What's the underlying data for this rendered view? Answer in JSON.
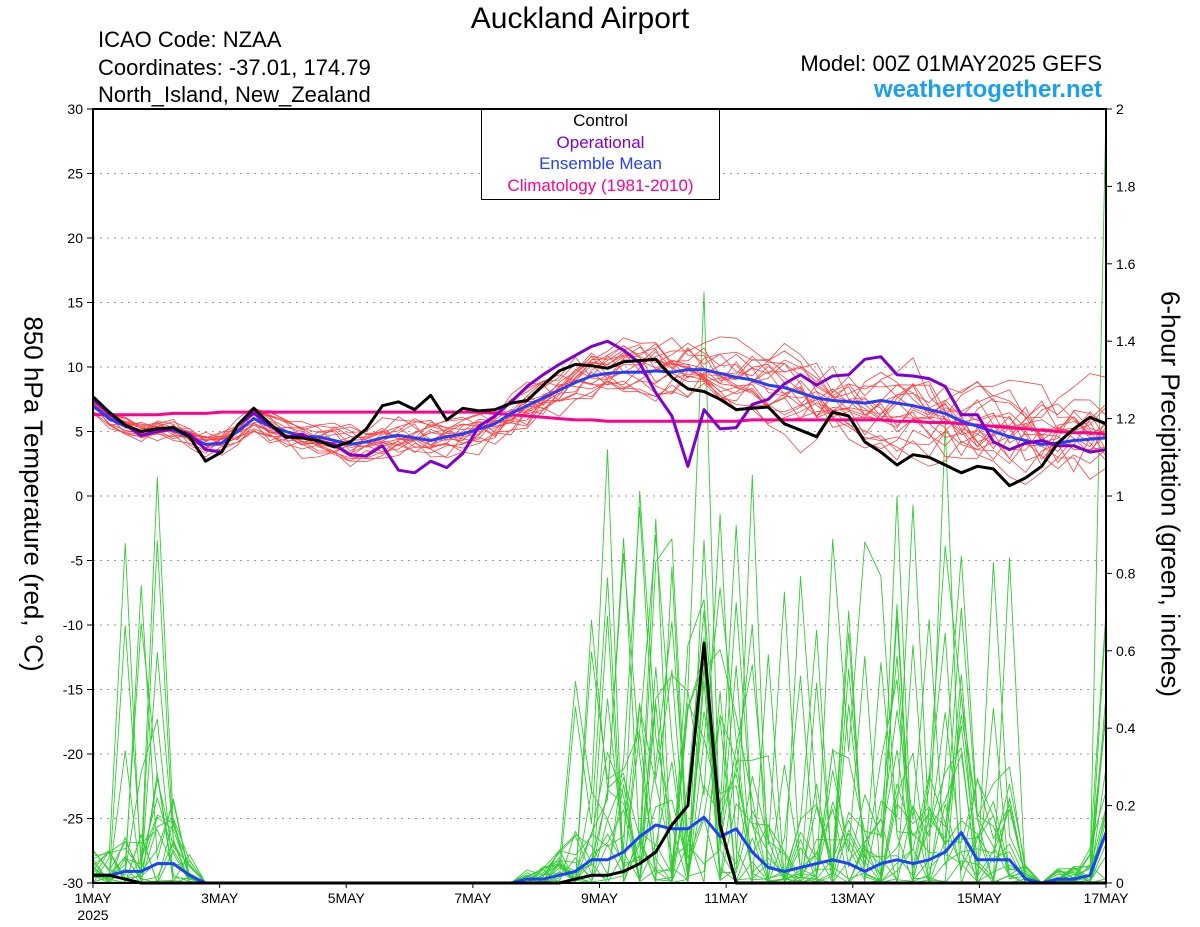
{
  "header": {
    "title": "Auckland Airport",
    "icao": "ICAO Code: NZAA",
    "coordinates": "Coordinates: -37.01, 174.79",
    "region": "North_Island, New_Zealand",
    "model": "Model: 00Z 01MAY2025 GEFS",
    "site": "weathertogether.net"
  },
  "colors": {
    "control": "#000000",
    "operational": "#8000d0",
    "ensemble_mean": "#2040ff",
    "climatology": "#ff0090",
    "members_temp": "#ff4040",
    "members_precip": "#33cc33",
    "site": "#1aa0f0"
  },
  "chart_data": {
    "type": "line",
    "ylabel_left": "850 hPa Temperature (red, °C)",
    "ylabel_right": "6-hour Precipitation (green, inches)",
    "ylim_left": [
      -30,
      30
    ],
    "ylim_right": [
      0,
      2
    ],
    "yticks_left": [
      "30",
      "25",
      "20",
      "15",
      "10",
      "5",
      "0",
      "-5",
      "-10",
      "-15",
      "-20",
      "-25",
      "-30"
    ],
    "yticks_right": [
      "2",
      "1.8",
      "1.6",
      "1.4",
      "1.2",
      "1",
      "0.8",
      "0.6",
      "0.4",
      "0.2",
      "0"
    ],
    "x_tick_labels": [
      "1MAY",
      "3MAY",
      "5MAY",
      "7MAY",
      "9MAY",
      "11MAY",
      "13MAY",
      "15MAY",
      "17MAY"
    ],
    "x_year_label": "2025",
    "grid": "dotted horizontal",
    "legend": {
      "position": "top-center",
      "entries": [
        "Control",
        "Operational",
        "Ensemble Mean",
        "Climatology (1981-2010)"
      ]
    },
    "time_step_hours": 6,
    "temperature": {
      "control": [
        7.7,
        6.5,
        5.5,
        5,
        5.2,
        5.3,
        4.6,
        2.7,
        3.4,
        5.5,
        6.8,
        5.6,
        4.6,
        4.5,
        4.3,
        3.8,
        4.2,
        5.2,
        7,
        7.3,
        6.7,
        7.8,
        5.9,
        6.8,
        6.6,
        6.7,
        7.2,
        7.4,
        8.6,
        9.7,
        10.2,
        10.1,
        9.9,
        10.4,
        10.5,
        10.6,
        9.2,
        8.3,
        8.1,
        7.5,
        6.7,
        6.8,
        6.9,
        5.6,
        5.1,
        4.6,
        6.5,
        6.2,
        4.2,
        3.4,
        2.4,
        3.2,
        3,
        2.4,
        1.8,
        2.3,
        2.1,
        0.8,
        1.4,
        2.3,
        4.1,
        5.2,
        6.1,
        5.6
      ],
      "operational": [
        7.5,
        6.4,
        5.5,
        4.7,
        5,
        5.2,
        4.8,
        3.6,
        3.4,
        5.5,
        6.4,
        5.5,
        4.5,
        4.8,
        4.2,
        4,
        3.2,
        3.1,
        3.9,
        2,
        1.8,
        2.7,
        2.2,
        3.3,
        5.4,
        6.2,
        7.3,
        8.5,
        9.4,
        10.2,
        10.9,
        11.6,
        12,
        11.3,
        10.3,
        8,
        6.2,
        2.3,
        6.7,
        5.2,
        5.3,
        7.1,
        7.5,
        8.7,
        9.4,
        8.6,
        9.3,
        9.4,
        10.6,
        10.8,
        9.4,
        9.3,
        9.1,
        8.5,
        6.3,
        6.3,
        4.2,
        3.6,
        4.1,
        4.3,
        3.9,
        3.9,
        3.4,
        3.6
      ],
      "ensemble_mean": [
        7,
        6,
        5.4,
        5,
        5.2,
        5.1,
        4.6,
        4,
        4.1,
        5,
        6,
        5.4,
        5,
        4.6,
        4.6,
        4.3,
        4,
        4.2,
        4.5,
        4.7,
        4.5,
        4.3,
        4.6,
        4.8,
        5.2,
        5.6,
        6.4,
        7,
        7.6,
        8.2,
        8.8,
        9.3,
        9.5,
        9.6,
        9.6,
        9.7,
        9.6,
        9.8,
        9.8,
        9.5,
        9.2,
        9,
        8.6,
        8.4,
        8,
        7.6,
        7.4,
        7.3,
        7.2,
        7.4,
        7.2,
        7,
        6.7,
        6.4,
        5.8,
        5.4,
        5,
        4.6,
        4.3,
        4,
        4.1,
        4.3,
        4.4,
        4.5
      ],
      "climatology": [
        6.3,
        6.3,
        6.3,
        6.3,
        6.3,
        6.4,
        6.4,
        6.4,
        6.5,
        6.5,
        6.5,
        6.5,
        6.5,
        6.5,
        6.5,
        6.5,
        6.5,
        6.5,
        6.5,
        6.5,
        6.5,
        6.5,
        6.5,
        6.5,
        6.5,
        6.4,
        6.3,
        6.2,
        6.1,
        6.0,
        5.9,
        5.9,
        5.8,
        5.8,
        5.8,
        5.8,
        5.8,
        5.8,
        5.8,
        5.8,
        5.8,
        5.9,
        5.9,
        5.9,
        5.9,
        5.9,
        5.9,
        5.9,
        5.9,
        5.9,
        5.8,
        5.8,
        5.7,
        5.7,
        5.6,
        5.5,
        5.4,
        5.3,
        5.2,
        5.1,
        5,
        4.9,
        4.9,
        4.8
      ]
    },
    "precipitation": {
      "control": [
        0.02,
        0.02,
        0.01,
        0,
        0,
        0,
        0,
        0,
        0,
        0,
        0,
        0,
        0,
        0,
        0,
        0,
        0,
        0,
        0,
        0,
        0,
        0,
        0,
        0,
        0,
        0,
        0,
        0,
        0,
        0,
        0.01,
        0.02,
        0.02,
        0.03,
        0.05,
        0.08,
        0.15,
        0.2,
        0.62,
        0.15,
        0,
        0,
        0,
        0,
        0,
        0,
        0,
        0,
        0,
        0,
        0,
        0,
        0,
        0,
        0,
        0,
        0,
        0,
        0,
        0,
        0,
        0,
        0,
        0
      ],
      "ensemble_mean": [
        0.02,
        0.02,
        0.03,
        0.03,
        0.05,
        0.05,
        0.02,
        0,
        0,
        0,
        0,
        0,
        0,
        0,
        0,
        0,
        0,
        0,
        0,
        0,
        0,
        0,
        0,
        0,
        0,
        0,
        0,
        0.01,
        0.01,
        0.02,
        0.03,
        0.06,
        0.06,
        0.08,
        0.12,
        0.15,
        0.14,
        0.14,
        0.17,
        0.12,
        0.14,
        0.08,
        0.04,
        0.03,
        0.04,
        0.05,
        0.06,
        0.05,
        0.03,
        0.05,
        0.06,
        0.05,
        0.06,
        0.08,
        0.13,
        0.06,
        0.06,
        0.06,
        0.01,
        0,
        0.01,
        0.01,
        0.02,
        0.13
      ]
    }
  }
}
